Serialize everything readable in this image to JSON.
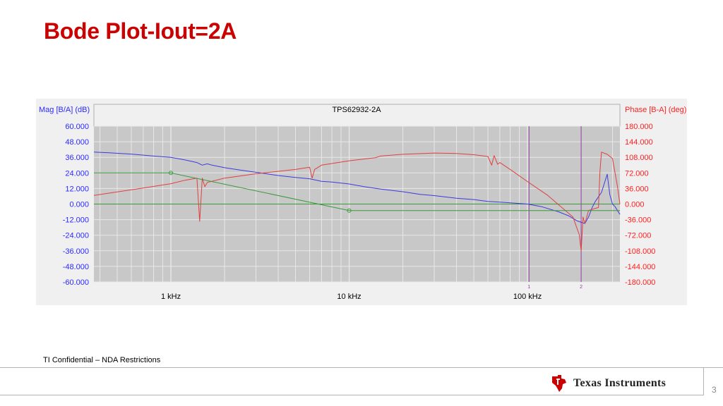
{
  "slide": {
    "title": "Bode Plot-Iout=2A",
    "footer_note": "TI Confidential – NDA Restrictions",
    "logo_text": "Texas Instruments",
    "page_number": "3"
  },
  "chart_data": {
    "type": "line",
    "title": "TPS62932-2A",
    "xscale": "log",
    "xlim": [
      370,
      330000
    ],
    "x_ticks": [
      {
        "value": 1000,
        "label": "1 kHz"
      },
      {
        "value": 10000,
        "label": "10 kHz"
      },
      {
        "value": 100000,
        "label": "100 kHz"
      }
    ],
    "y_left": {
      "label": "Mag [B/A] (dB)",
      "lim": [
        -60,
        60
      ],
      "ticks": [
        "60.000",
        "48.000",
        "36.000",
        "24.000",
        "12.000",
        "0.000",
        "-12.000",
        "-24.000",
        "-36.000",
        "-48.000",
        "-60.000"
      ]
    },
    "y_right": {
      "label": "Phase [B-A] (deg)",
      "lim": [
        -180,
        180
      ],
      "ticks": [
        "180.000",
        "144.000",
        "108.000",
        "72.000",
        "36.000",
        "0.000",
        "-36.000",
        "-72.000",
        "-108.000",
        "-144.000",
        "-180.000"
      ]
    },
    "grid": true,
    "colors": {
      "magnitude": "#3b3be0",
      "phase": "#e04040",
      "reference": "#3a9a3a",
      "cursor": "#8a3a9a",
      "left_axis_text": "#2a2aff",
      "right_axis_text": "#ff2020",
      "plot_bg": "#c8c8c8",
      "grid": "#e8e8e8"
    },
    "cursors": [
      {
        "label": "1",
        "x": 102000
      },
      {
        "label": "2",
        "x": 200000
      }
    ],
    "series": [
      {
        "key": "magnitude",
        "axis": "left",
        "x": [
          370,
          450,
          600,
          800,
          1000,
          1200,
          1400,
          1500,
          1600,
          1700,
          2000,
          2500,
          3000,
          4000,
          5000,
          6000,
          7000,
          8000,
          10000,
          12000,
          15000,
          20000,
          25000,
          30000,
          40000,
          50000,
          60000,
          70000,
          80000,
          100000,
          120000,
          150000,
          170000,
          190000,
          210000,
          220000,
          230000,
          240000,
          260000,
          270000,
          280000,
          290000,
          300000,
          310000,
          330000
        ],
        "y": [
          40,
          39.5,
          38.5,
          37,
          36,
          34,
          32,
          30,
          31,
          30,
          28,
          26,
          24.5,
          22,
          20.5,
          19.5,
          17.5,
          17,
          15.5,
          13.5,
          11.5,
          9.5,
          7.5,
          6.5,
          4.5,
          3.5,
          2,
          1.5,
          1,
          0,
          -2,
          -6,
          -9,
          -13,
          -15,
          -10,
          -3,
          2,
          9,
          16,
          23,
          7,
          0,
          -2,
          -8
        ]
      },
      {
        "key": "phase",
        "axis": "right",
        "x": [
          370,
          500,
          700,
          1000,
          1200,
          1400,
          1450,
          1500,
          1550,
          1600,
          2000,
          3000,
          5000,
          6000,
          6200,
          6400,
          7000,
          10000,
          14000,
          15000,
          20000,
          30000,
          40000,
          50000,
          60000,
          63000,
          65000,
          68000,
          70000,
          80000,
          100000,
          130000,
          160000,
          180000,
          195000,
          200000,
          205000,
          210000,
          220000,
          240000,
          250000,
          255000,
          260000,
          280000,
          300000,
          320000,
          330000
        ],
        "y": [
          20,
          28,
          37,
          47,
          55,
          60,
          -40,
          60,
          40,
          50,
          60,
          70,
          80,
          85,
          60,
          80,
          90,
          100,
          107,
          111,
          115,
          118,
          117,
          114,
          110,
          90,
          112,
          92,
          96,
          80,
          52,
          20,
          -12,
          -30,
          -70,
          -108,
          -30,
          -45,
          -15,
          -10,
          -8,
          75,
          120,
          115,
          105,
          40,
          0
        ]
      },
      {
        "key": "reference_magnitude",
        "axis": "left",
        "x": [
          370,
          1000,
          10000,
          330000
        ],
        "y": [
          24,
          24,
          -5,
          -5
        ]
      }
    ]
  }
}
